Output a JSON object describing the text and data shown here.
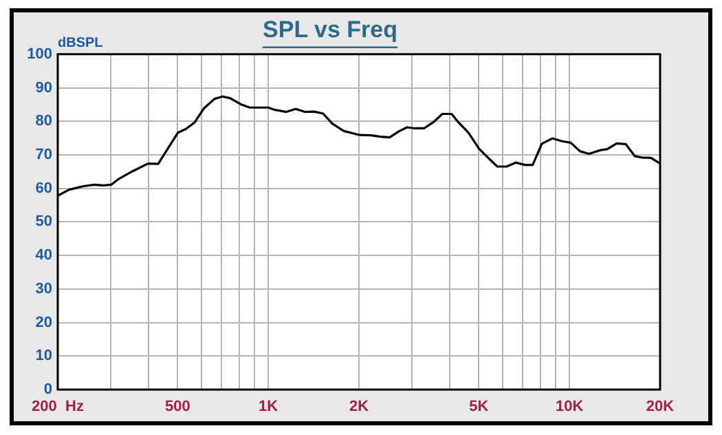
{
  "chart_data": {
    "type": "line",
    "title": "SPL vs Freq",
    "ylabel": "dBSPL",
    "log": "x",
    "grid": true,
    "legend": false,
    "marker": "none",
    "line_style": "solid",
    "x": [
      200,
      218,
      242,
      264,
      283,
      301,
      320,
      349,
      399,
      431,
      501,
      532,
      570,
      612,
      663,
      704,
      747,
      810,
      868,
      999,
      1053,
      1149,
      1233,
      1323,
      1419,
      1521,
      1632,
      1782,
      2014,
      2199,
      2358,
      2530,
      2713,
      2890,
      3067,
      3290,
      3530,
      3785,
      4060,
      4279,
      4622,
      5010,
      5374,
      5765,
      6183,
      6632,
      7112,
      7550,
      8097,
      8775,
      9415,
      10098,
      10830,
      11616,
      12680,
      13366,
      14340,
      15378,
      16494,
      17383,
      18648,
      20000
    ],
    "series": [
      {
        "color": "#000000",
        "values": [
          57.8,
          59.6,
          60.6,
          61.1,
          60.9,
          61.1,
          62.9,
          64.8,
          67.4,
          67.3,
          76.6,
          77.7,
          79.7,
          83.9,
          86.7,
          87.4,
          86.9,
          85.1,
          84.1,
          84.1,
          83.4,
          82.8,
          83.7,
          82.8,
          82.9,
          82.3,
          79.3,
          77.1,
          75.9,
          75.8,
          75.4,
          75.2,
          77.0,
          78.2,
          77.9,
          77.9,
          79.7,
          82.2,
          82.2,
          79.7,
          76.6,
          71.8,
          69.1,
          66.5,
          66.5,
          67.7,
          67.0,
          67.0,
          73.3,
          74.9,
          74.1,
          73.6,
          71.1,
          70.3,
          71.4,
          71.7,
          73.4,
          73.2,
          69.6,
          69.2,
          69.1,
          67.4
        ]
      }
    ],
    "xlim": [
      200,
      20000
    ],
    "xticks": [
      {
        "value": 200,
        "label": "200  Hz"
      },
      {
        "value": 300,
        "label": null
      },
      {
        "value": 400,
        "label": null
      },
      {
        "value": 500,
        "label": "500"
      },
      {
        "value": 600,
        "label": null
      },
      {
        "value": 700,
        "label": null
      },
      {
        "value": 800,
        "label": null
      },
      {
        "value": 900,
        "label": null
      },
      {
        "value": 1000,
        "label": "1K"
      },
      {
        "value": 2000,
        "label": "2K"
      },
      {
        "value": 3000,
        "label": null
      },
      {
        "value": 4000,
        "label": null
      },
      {
        "value": 5000,
        "label": "5K"
      },
      {
        "value": 6000,
        "label": null
      },
      {
        "value": 7000,
        "label": null
      },
      {
        "value": 8000,
        "label": null
      },
      {
        "value": 9000,
        "label": null
      },
      {
        "value": 10000,
        "label": "10K"
      },
      {
        "value": 20000,
        "label": "20K"
      }
    ],
    "ylim": [
      0,
      100
    ],
    "yticks": [
      0,
      10,
      20,
      30,
      40,
      50,
      60,
      70,
      80,
      90,
      100
    ]
  }
}
